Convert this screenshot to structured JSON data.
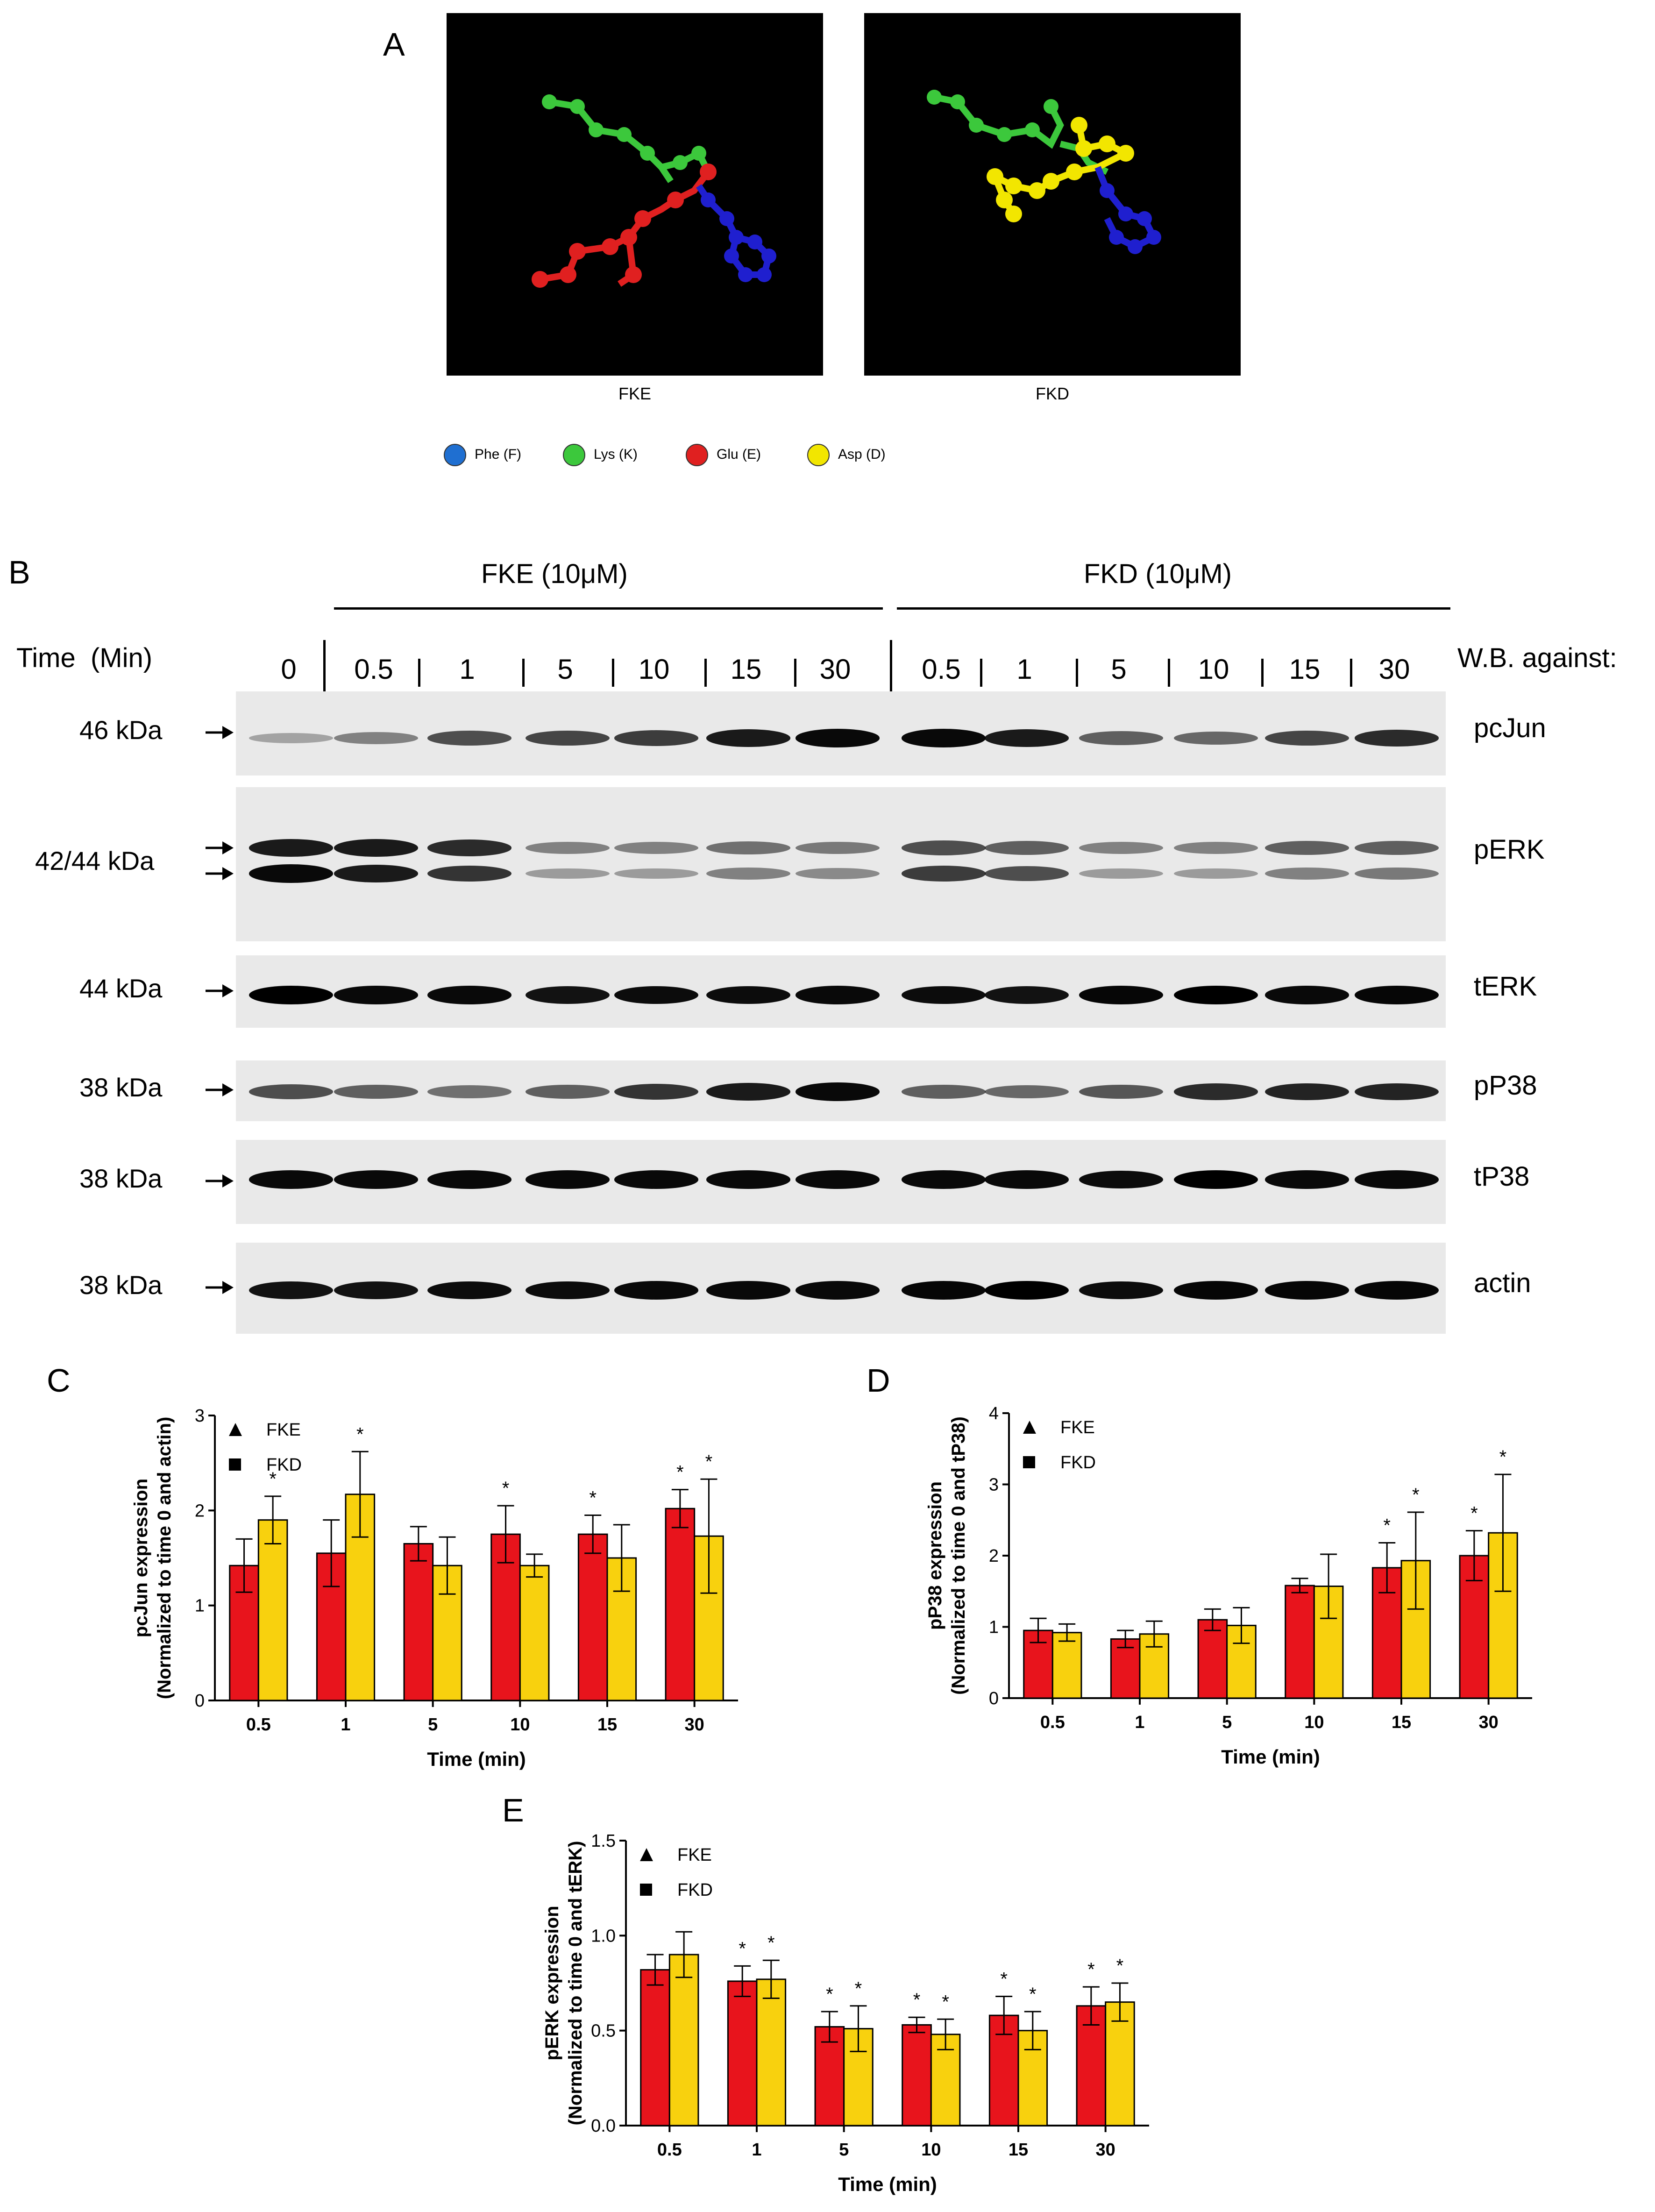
{
  "panel_a": {
    "letter": "A",
    "structures": [
      {
        "label": "FKE"
      },
      {
        "label": "FKD"
      }
    ],
    "legend": [
      {
        "label": "Phe (F)",
        "color": "#1f6fd1"
      },
      {
        "label": "Lys (K)",
        "color": "#3cc83c"
      },
      {
        "label": "Glu (E)",
        "color": "#e02020"
      },
      {
        "label": "Asp (D)",
        "color": "#f2e600"
      }
    ]
  },
  "panel_b": {
    "letter": "B",
    "group_fke": "FKE (10μM)",
    "group_fkd": "FKD (10μM)",
    "time_label": "Time  (Min)",
    "wb_label": "W.B. against:",
    "lanes": [
      "0",
      "0.5",
      "1",
      "5",
      "10",
      "15",
      "30",
      "0.5",
      "1",
      "5",
      "10",
      "15",
      "30"
    ],
    "blots": [
      {
        "name": "pcJun",
        "kda": "46 kDa"
      },
      {
        "name": "pERK",
        "kda": "42/44 kDa"
      },
      {
        "name": "tERK",
        "kda": "44 kDa"
      },
      {
        "name": "pP38",
        "kda": "38 kDa"
      },
      {
        "name": "tP38",
        "kda": "38 kDa"
      },
      {
        "name": "actin",
        "kda": "38 kDa"
      }
    ]
  },
  "chart_data": [
    {
      "panel": "C",
      "type": "bar",
      "categories": [
        "0.5",
        "1",
        "5",
        "10",
        "15",
        "30"
      ],
      "xlabel": "Time (min)",
      "ylabel": [
        "pcJun expression",
        "(Normalized to time 0 and actin)"
      ],
      "ylim": [
        0,
        3
      ],
      "yticks": [
        "0",
        "1",
        "2",
        "3"
      ],
      "series": [
        {
          "name": "FKE",
          "color": "#e8141c",
          "marker": "triangle",
          "values": [
            1.42,
            1.55,
            1.65,
            1.75,
            1.75,
            2.02
          ],
          "err": [
            0.28,
            0.35,
            0.18,
            0.3,
            0.2,
            0.2
          ],
          "sig": [
            false,
            false,
            false,
            true,
            true,
            true
          ]
        },
        {
          "name": "FKD",
          "color": "#f8d10e",
          "marker": "square",
          "values": [
            1.9,
            2.17,
            1.42,
            1.42,
            1.5,
            1.73
          ],
          "err": [
            0.25,
            0.45,
            0.3,
            0.12,
            0.35,
            0.6
          ],
          "sig": [
            true,
            true,
            false,
            false,
            false,
            true
          ]
        }
      ],
      "sig_label": "*"
    },
    {
      "panel": "D",
      "type": "bar",
      "categories": [
        "0.5",
        "1",
        "5",
        "10",
        "15",
        "30"
      ],
      "xlabel": "Time (min)",
      "ylabel": [
        "pP38 expression",
        "(Normalized to time 0 and tP38)"
      ],
      "ylim": [
        0,
        4
      ],
      "yticks": [
        "0",
        "1",
        "2",
        "3",
        "4"
      ],
      "series": [
        {
          "name": "FKE",
          "color": "#e8141c",
          "marker": "triangle",
          "values": [
            0.95,
            0.83,
            1.1,
            1.58,
            1.83,
            2.0
          ],
          "err": [
            0.17,
            0.12,
            0.15,
            0.1,
            0.35,
            0.35
          ],
          "sig": [
            false,
            false,
            false,
            false,
            true,
            true
          ]
        },
        {
          "name": "FKD",
          "color": "#f8d10e",
          "marker": "square",
          "values": [
            0.92,
            0.9,
            1.02,
            1.57,
            1.93,
            2.32
          ],
          "err": [
            0.12,
            0.18,
            0.25,
            0.45,
            0.68,
            0.82
          ],
          "sig": [
            false,
            false,
            false,
            false,
            true,
            true
          ]
        }
      ],
      "sig_label": "*"
    },
    {
      "panel": "E",
      "type": "bar",
      "categories": [
        "0.5",
        "1",
        "5",
        "10",
        "15",
        "30"
      ],
      "xlabel": "Time (min)",
      "ylabel": [
        "pERK expression",
        "(Normalized to time 0 and tERK)"
      ],
      "ylim": [
        0,
        1.5
      ],
      "yticks": [
        "0.0",
        "0.5",
        "1.0",
        "1.5"
      ],
      "series": [
        {
          "name": "FKE",
          "color": "#e8141c",
          "marker": "triangle",
          "values": [
            0.82,
            0.76,
            0.52,
            0.53,
            0.58,
            0.63
          ],
          "err": [
            0.08,
            0.08,
            0.08,
            0.04,
            0.1,
            0.1
          ],
          "sig": [
            false,
            true,
            true,
            true,
            true,
            true
          ]
        },
        {
          "name": "FKD",
          "color": "#f8d10e",
          "marker": "square",
          "values": [
            0.9,
            0.77,
            0.51,
            0.48,
            0.5,
            0.65
          ],
          "err": [
            0.12,
            0.1,
            0.12,
            0.08,
            0.1,
            0.1
          ],
          "sig": [
            false,
            true,
            true,
            true,
            true,
            true
          ]
        }
      ],
      "sig_label": "*"
    }
  ]
}
